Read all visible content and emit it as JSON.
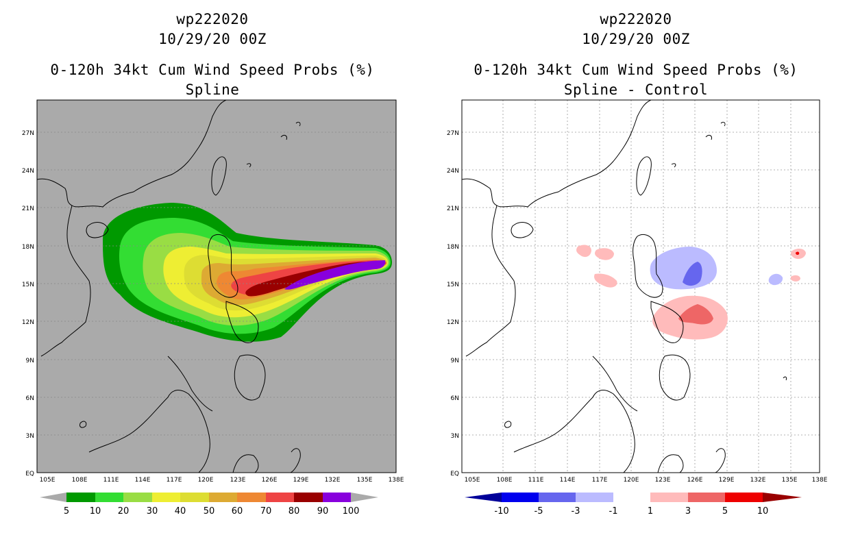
{
  "panels": [
    {
      "title_line1": "wp222020",
      "title_line2": "10/29/20 00Z",
      "title_line3": "0-120h 34kt Cum Wind Speed Probs (%)",
      "title_line4": "Spline"
    },
    {
      "title_line1": "wp222020",
      "title_line2": "10/29/20 00Z",
      "title_line3": "0-120h 34kt Cum Wind Speed Probs (%)",
      "title_line4": "Spline - Control"
    }
  ],
  "map": {
    "lat_labels": [
      "EQ",
      "3N",
      "6N",
      "9N",
      "12N",
      "15N",
      "18N",
      "21N",
      "24N",
      "27N"
    ],
    "lon_labels": [
      "105E",
      "108E",
      "111E",
      "114E",
      "117E",
      "120E",
      "123E",
      "126E",
      "129E",
      "132E",
      "135E",
      "138E"
    ],
    "lon_range": [
      104,
      138
    ],
    "lat_range": [
      0,
      29.5
    ]
  },
  "legend_left": {
    "labels": [
      "5",
      "10",
      "20",
      "30",
      "40",
      "50",
      "60",
      "70",
      "80",
      "90",
      "100"
    ],
    "colors": [
      "#009900",
      "#33dd33",
      "#99dd44",
      "#eeee33",
      "#dddd33",
      "#ddaa33",
      "#ee8833",
      "#ee4444",
      "#990000",
      "#8800dd"
    ]
  },
  "legend_right": {
    "labels": [
      "-10",
      "-5",
      "-3",
      "-1",
      "1",
      "3",
      "5",
      "10"
    ],
    "colors": [
      "#000099",
      "#0000ee",
      "#6666ee",
      "#bbbbff",
      "#ffffff",
      "#ffbbbb",
      "#ee6666",
      "#ee0000",
      "#990000"
    ]
  },
  "colors": {
    "ocean_gray": "#aaaaaa",
    "grid": "#888888"
  }
}
